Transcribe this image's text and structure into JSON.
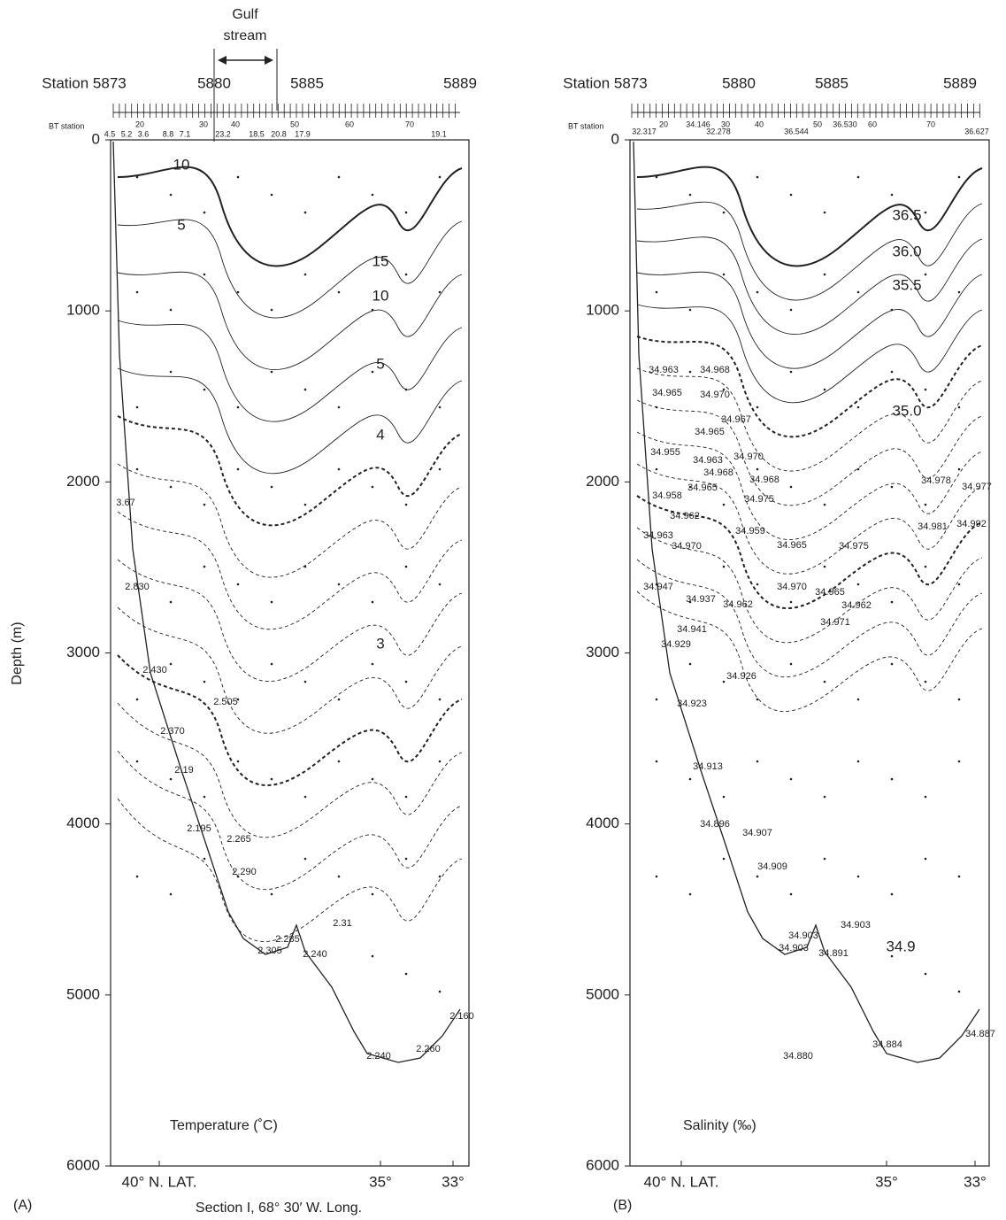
{
  "chart_data": [
    {
      "type": "section",
      "panel_label": "(A)",
      "quantity_label": "Temperature (˚C)",
      "y_axis_label": "Depth (m)",
      "caption": "Section I, 68° 30′ W. Long.",
      "annotation": [
        "Gulf",
        "stream"
      ],
      "ylim": [
        0,
        6000
      ],
      "yticks": [
        0,
        1000,
        2000,
        3000,
        4000,
        5000,
        6000
      ],
      "stations": [
        "Station 5873",
        "5880",
        "5885",
        "5889"
      ],
      "bt_label": "BT station",
      "bt_numbers": [
        "20",
        "30",
        "40",
        "50",
        "60",
        "70"
      ],
      "surface_values": [
        "4.5",
        "5.2",
        "3.6",
        "8.8",
        "7.1",
        "23.2",
        "18.5",
        "20.8",
        "17.9",
        "19.1"
      ],
      "latitudes": [
        "40° N. LAT.",
        "35°",
        "33°"
      ],
      "contour_labels": [
        "10",
        "5",
        "15",
        "10",
        "5",
        "4",
        "3"
      ],
      "values": [
        "3.67",
        "2.830",
        "2.430",
        "2.505",
        "2.370",
        "2.19",
        "2.195",
        "2.265",
        "2.290",
        "2.31",
        "2.285",
        "2.305",
        "2.240",
        "2.240",
        "2.260",
        "2.160"
      ]
    },
    {
      "type": "section",
      "panel_label": "(B)",
      "quantity_label": "Salinity (‰)",
      "ylim": [
        0,
        6000
      ],
      "yticks": [
        0,
        1000,
        2000,
        3000,
        4000,
        5000,
        6000
      ],
      "stations": [
        "Station 5873",
        "5880",
        "5885",
        "5889"
      ],
      "bt_label": "BT station",
      "bt_numbers": [
        "20",
        "30",
        "40",
        "50",
        "60",
        "70"
      ],
      "surface_values": [
        "32.317",
        "34.146",
        "32.278",
        "36.544",
        "36.530",
        "36.627"
      ],
      "latitudes": [
        "40° N. LAT.",
        "35°",
        "33°"
      ],
      "contour_labels": [
        "36.5",
        "36.0",
        "35.5",
        "35.0",
        "34.9"
      ],
      "values": [
        "34.963",
        "34.968",
        "34.965",
        "34.970",
        "34.967",
        "34.965",
        "34.955",
        "34.963",
        "34.970",
        "34.968",
        "34.958",
        "34.965",
        "34.968",
        "34.975",
        "34.962",
        "34.959",
        "34.963",
        "34.970",
        "34.965",
        "34.975",
        "34.978",
        "34.977",
        "34.981",
        "34.992",
        "34.970",
        "34.965",
        "34.962",
        "34.947",
        "34.962",
        "34.937",
        "34.941",
        "34.971",
        "34.929",
        "34.926",
        "34.923",
        "34.913",
        "34.896",
        "34.907",
        "34.909",
        "34.903",
        "34.903",
        "34.903",
        "34.891",
        "34.880",
        "34.884",
        "34.887"
      ]
    }
  ]
}
